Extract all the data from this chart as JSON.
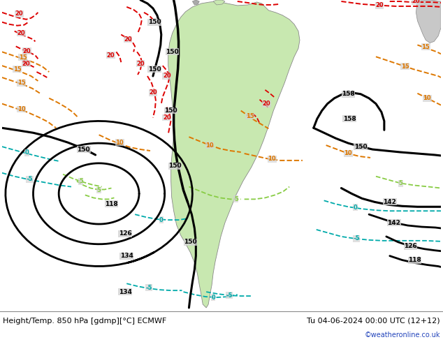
{
  "title_left": "Height/Temp. 850 hPa [gdmp][°C] ECMWF",
  "title_right": "Tu 04-06-2024 00:00 UTC (12+12)",
  "watermark": "©weatheronline.co.uk",
  "bg_color": "#d3d3d3",
  "sa_green": "#c8e8b0",
  "land_gray": "#c8c8c8",
  "footer_bg": "#ffffff",
  "footer_text_color": "#000000",
  "watermark_color": "#2244bb",
  "fig_width": 6.34,
  "fig_height": 4.9,
  "dpi": 100,
  "red": "#dd0000",
  "orange": "#dd7700",
  "lgreen": "#88cc44",
  "cyan": "#00aaaa",
  "blue": "#0055cc",
  "magenta": "#cc00cc"
}
